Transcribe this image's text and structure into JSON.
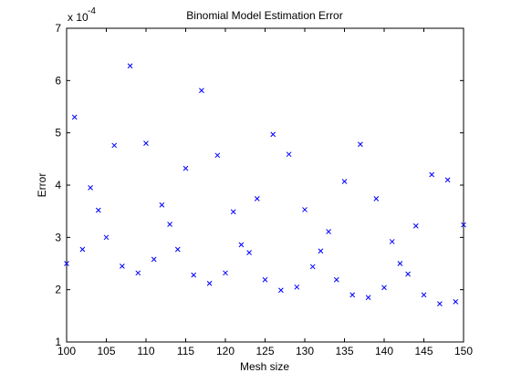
{
  "chart_data": {
    "type": "scatter",
    "title": "Binomial Model Estimation Error",
    "xlabel": "Mesh size",
    "ylabel": "Error",
    "y_exponent_base": "x 10",
    "y_exponent_power": "-4",
    "xlim": [
      100,
      150
    ],
    "ylim": [
      1,
      7
    ],
    "x_ticks": [
      100,
      105,
      110,
      115,
      120,
      125,
      130,
      135,
      140,
      145,
      150
    ],
    "y_ticks": [
      1,
      2,
      3,
      4,
      5,
      6,
      7
    ],
    "grid": false,
    "marker": "x",
    "marker_color": "#0000ff",
    "series": [
      {
        "x": [
          100,
          101,
          102,
          103,
          104,
          105,
          106,
          107,
          108,
          109,
          110,
          111,
          112,
          113,
          114,
          115,
          116,
          117,
          118,
          119,
          120,
          121,
          122,
          123,
          124,
          125,
          126,
          127,
          128,
          129,
          130,
          131,
          132,
          133,
          134,
          135,
          136,
          137,
          138,
          139,
          140,
          141,
          142,
          143,
          144,
          145,
          146,
          147,
          148,
          149,
          150
        ],
        "y": [
          2.5,
          5.3,
          2.77,
          3.95,
          3.52,
          3.0,
          4.76,
          2.45,
          6.28,
          2.32,
          4.8,
          2.58,
          3.62,
          3.25,
          2.77,
          4.32,
          2.28,
          5.81,
          2.12,
          4.57,
          2.32,
          3.49,
          2.86,
          2.71,
          3.74,
          2.19,
          4.97,
          1.99,
          4.59,
          2.05,
          3.53,
          2.44,
          2.74,
          3.11,
          2.19,
          4.07,
          1.9,
          4.78,
          1.85,
          3.74,
          2.04,
          2.92,
          2.5,
          2.3,
          3.22,
          1.9,
          4.2,
          1.73,
          4.1,
          1.77,
          3.24
        ]
      }
    ]
  }
}
